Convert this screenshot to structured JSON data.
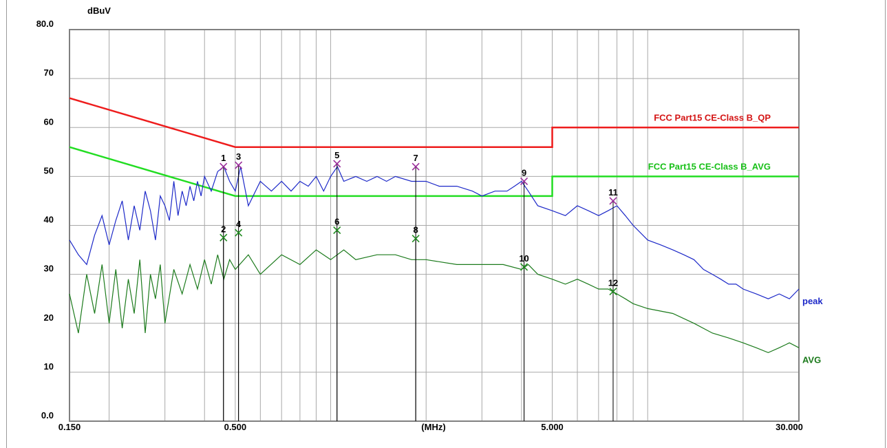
{
  "chart_data": {
    "type": "line",
    "x_scale": "log",
    "xlim": [
      0.15,
      30
    ],
    "ylim": [
      0,
      80
    ],
    "ylabel": "dBuV",
    "xlabel": "(MHz)",
    "grid": true,
    "y_ticks": [
      {
        "value": 80,
        "label": "80.0"
      },
      {
        "value": 70,
        "label": "70"
      },
      {
        "value": 60,
        "label": "60"
      },
      {
        "value": 50,
        "label": "50"
      },
      {
        "value": 40,
        "label": "40"
      },
      {
        "value": 30,
        "label": "30"
      },
      {
        "value": 20,
        "label": "20"
      },
      {
        "value": 10,
        "label": "10"
      },
      {
        "value": 0,
        "label": "0.0"
      }
    ],
    "x_ticks": [
      {
        "value": 0.15,
        "label": "0.150"
      },
      {
        "value": 0.5,
        "label": "0.500"
      },
      {
        "value": 5,
        "label": "5.000"
      },
      {
        "value": 30,
        "label": "30.000"
      }
    ],
    "limit_lines": [
      {
        "name": "FCC Part15 CE-Class B_QP",
        "color": "#ee1c1c",
        "points": [
          [
            0.15,
            66
          ],
          [
            0.5,
            56
          ],
          [
            5,
            56
          ],
          [
            5,
            60
          ],
          [
            30,
            60
          ]
        ]
      },
      {
        "name": "FCC Part15 CE-Class B_AVG",
        "color": "#22dd22",
        "points": [
          [
            0.15,
            56
          ],
          [
            0.5,
            46
          ],
          [
            5,
            46
          ],
          [
            5,
            50
          ],
          [
            30,
            50
          ]
        ]
      }
    ],
    "series": [
      {
        "name": "peak",
        "color": "#1c28c8",
        "points": [
          [
            0.15,
            37
          ],
          [
            0.16,
            34
          ],
          [
            0.17,
            32
          ],
          [
            0.18,
            38
          ],
          [
            0.19,
            42
          ],
          [
            0.2,
            36
          ],
          [
            0.21,
            41
          ],
          [
            0.22,
            45
          ],
          [
            0.23,
            37
          ],
          [
            0.24,
            44
          ],
          [
            0.25,
            39
          ],
          [
            0.26,
            47
          ],
          [
            0.27,
            43
          ],
          [
            0.28,
            37
          ],
          [
            0.29,
            46
          ],
          [
            0.3,
            44
          ],
          [
            0.31,
            41
          ],
          [
            0.32,
            49
          ],
          [
            0.33,
            42
          ],
          [
            0.34,
            47
          ],
          [
            0.35,
            44
          ],
          [
            0.36,
            48
          ],
          [
            0.37,
            45
          ],
          [
            0.38,
            49
          ],
          [
            0.39,
            46
          ],
          [
            0.4,
            50
          ],
          [
            0.42,
            47
          ],
          [
            0.44,
            51
          ],
          [
            0.46,
            52
          ],
          [
            0.48,
            49
          ],
          [
            0.5,
            47
          ],
          [
            0.52,
            52
          ],
          [
            0.55,
            44
          ],
          [
            0.6,
            49
          ],
          [
            0.65,
            47
          ],
          [
            0.7,
            49
          ],
          [
            0.75,
            47
          ],
          [
            0.8,
            49
          ],
          [
            0.85,
            48
          ],
          [
            0.9,
            50
          ],
          [
            0.95,
            47
          ],
          [
            1.0,
            50
          ],
          [
            1.05,
            52
          ],
          [
            1.1,
            49
          ],
          [
            1.2,
            50
          ],
          [
            1.3,
            49
          ],
          [
            1.4,
            50
          ],
          [
            1.5,
            49
          ],
          [
            1.6,
            50
          ],
          [
            1.8,
            49
          ],
          [
            2.0,
            49
          ],
          [
            2.2,
            48
          ],
          [
            2.5,
            48
          ],
          [
            2.8,
            47
          ],
          [
            3.0,
            46
          ],
          [
            3.3,
            47
          ],
          [
            3.6,
            47
          ],
          [
            3.8,
            48
          ],
          [
            4.0,
            49
          ],
          [
            4.2,
            47
          ],
          [
            4.5,
            44
          ],
          [
            5.0,
            43
          ],
          [
            5.5,
            42
          ],
          [
            6.0,
            44
          ],
          [
            6.5,
            43
          ],
          [
            7.0,
            42
          ],
          [
            7.5,
            43
          ],
          [
            8.0,
            44
          ],
          [
            8.5,
            42
          ],
          [
            9.0,
            40
          ],
          [
            10.0,
            37
          ],
          [
            11.0,
            36
          ],
          [
            12.0,
            35
          ],
          [
            13.0,
            34
          ],
          [
            14.0,
            33
          ],
          [
            15.0,
            31
          ],
          [
            16.0,
            30
          ],
          [
            17.0,
            29
          ],
          [
            18.0,
            28
          ],
          [
            19.0,
            28
          ],
          [
            20.0,
            27
          ],
          [
            22.0,
            26
          ],
          [
            24.0,
            25
          ],
          [
            26.0,
            26
          ],
          [
            28.0,
            25
          ],
          [
            30.0,
            27
          ]
        ]
      },
      {
        "name": "AVG",
        "color": "#1b7a1b",
        "points": [
          [
            0.15,
            26
          ],
          [
            0.16,
            18
          ],
          [
            0.17,
            30
          ],
          [
            0.18,
            22
          ],
          [
            0.19,
            32
          ],
          [
            0.2,
            20
          ],
          [
            0.21,
            31
          ],
          [
            0.22,
            19
          ],
          [
            0.23,
            29
          ],
          [
            0.24,
            22
          ],
          [
            0.25,
            33
          ],
          [
            0.26,
            18
          ],
          [
            0.27,
            30
          ],
          [
            0.28,
            25
          ],
          [
            0.29,
            32
          ],
          [
            0.3,
            20
          ],
          [
            0.32,
            31
          ],
          [
            0.34,
            26
          ],
          [
            0.36,
            32
          ],
          [
            0.38,
            27
          ],
          [
            0.4,
            33
          ],
          [
            0.42,
            28
          ],
          [
            0.44,
            34
          ],
          [
            0.46,
            29
          ],
          [
            0.48,
            33
          ],
          [
            0.5,
            31
          ],
          [
            0.55,
            34
          ],
          [
            0.6,
            30
          ],
          [
            0.7,
            34
          ],
          [
            0.8,
            32
          ],
          [
            0.9,
            35
          ],
          [
            1.0,
            33
          ],
          [
            1.1,
            35
          ],
          [
            1.2,
            33
          ],
          [
            1.4,
            34
          ],
          [
            1.6,
            34
          ],
          [
            1.8,
            33
          ],
          [
            2.0,
            33
          ],
          [
            2.5,
            32
          ],
          [
            3.0,
            32
          ],
          [
            3.5,
            32
          ],
          [
            4.0,
            31
          ],
          [
            4.2,
            32
          ],
          [
            4.5,
            30
          ],
          [
            5.0,
            29
          ],
          [
            5.5,
            28
          ],
          [
            6.0,
            29
          ],
          [
            6.5,
            28
          ],
          [
            7.0,
            27
          ],
          [
            7.5,
            27
          ],
          [
            8.0,
            26
          ],
          [
            8.5,
            25
          ],
          [
            9.0,
            24
          ],
          [
            10.0,
            23
          ],
          [
            12.0,
            22
          ],
          [
            14.0,
            20
          ],
          [
            16.0,
            18
          ],
          [
            18.0,
            17
          ],
          [
            20.0,
            16
          ],
          [
            22.0,
            15
          ],
          [
            24.0,
            14
          ],
          [
            26.0,
            15
          ],
          [
            28.0,
            16
          ],
          [
            30.0,
            15
          ]
        ]
      }
    ],
    "markers": [
      {
        "label": "1",
        "x": 0.459,
        "y": 52,
        "series": "peak"
      },
      {
        "label": "2",
        "x": 0.459,
        "y": 37.5,
        "series": "AVG"
      },
      {
        "label": "3",
        "x": 0.512,
        "y": 52.3,
        "series": "peak"
      },
      {
        "label": "4",
        "x": 0.512,
        "y": 38.5,
        "series": "AVG"
      },
      {
        "label": "5",
        "x": 1.047,
        "y": 52.6,
        "series": "peak"
      },
      {
        "label": "6",
        "x": 1.047,
        "y": 39,
        "series": "AVG"
      },
      {
        "label": "7",
        "x": 1.855,
        "y": 52,
        "series": "peak"
      },
      {
        "label": "8",
        "x": 1.855,
        "y": 37.3,
        "series": "AVG"
      },
      {
        "label": "9",
        "x": 4.074,
        "y": 49,
        "series": "peak"
      },
      {
        "label": "10",
        "x": 4.074,
        "y": 31.5,
        "series": "AVG"
      },
      {
        "label": "11",
        "x": 7.78,
        "y": 45,
        "series": "peak"
      },
      {
        "label": "12",
        "x": 7.78,
        "y": 26.5,
        "series": "AVG"
      }
    ]
  }
}
